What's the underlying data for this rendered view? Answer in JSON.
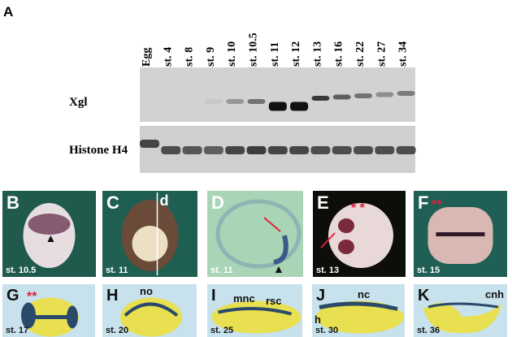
{
  "panel_a": {
    "letter": "A",
    "lanes": [
      "Egg",
      "st. 4",
      "st. 8",
      "st. 9",
      "st. 10",
      "st. 10.5",
      "st. 11",
      "st. 12",
      "st. 13",
      "st. 16",
      "st. 22",
      "st. 27",
      "st. 34"
    ],
    "rows": [
      {
        "label": "Xgl",
        "band_intensity": [
          0,
          0,
          0,
          0.05,
          0.3,
          0.5,
          1,
          1,
          0.8,
          0.6,
          0.5,
          0.35,
          0.45
        ]
      },
      {
        "label": "Histone H4",
        "band_intensity": [
          0.8,
          0.75,
          0.7,
          0.65,
          0.8,
          0.85,
          0.8,
          0.8,
          0.75,
          0.75,
          0.75,
          0.75,
          0.75
        ]
      }
    ]
  },
  "panels": [
    {
      "letter": "B",
      "stage": "st. 10.5",
      "bg": "#1f5a4c",
      "annotations": []
    },
    {
      "letter": "C",
      "stage": "st. 11",
      "bg": "#1f5f52",
      "annotations": [
        "d"
      ]
    },
    {
      "letter": "D",
      "stage": "st. 11",
      "bg": "#a9d4b6",
      "annotations": []
    },
    {
      "letter": "E",
      "stage": "st. 13",
      "bg": "#0d0d0a",
      "annotations": [
        "* *"
      ]
    },
    {
      "letter": "F",
      "stage": "st. 15",
      "bg": "#1f5f55",
      "annotations": [
        "**"
      ]
    },
    {
      "letter": "G",
      "stage": "st. 17",
      "bg": "#c7e2ec",
      "annotations": [
        "**"
      ]
    },
    {
      "letter": "H",
      "stage": "st. 20",
      "bg": "#c7e2ec",
      "annotations": [
        "no"
      ]
    },
    {
      "letter": "I",
      "stage": "st. 25",
      "bg": "#c7e2ec",
      "annotations": [
        "mnc",
        "rsc"
      ]
    },
    {
      "letter": "J",
      "stage": "st. 30",
      "bg": "#c7e2ec",
      "annotations": [
        "nc",
        "h"
      ]
    },
    {
      "letter": "K",
      "stage": "st. 36",
      "bg": "#c7e2ec",
      "annotations": [
        "cnh"
      ]
    }
  ],
  "colors": {
    "stain": "#2b4a6a",
    "asterisk": "#e0203a",
    "yolk": "#e8e050"
  }
}
